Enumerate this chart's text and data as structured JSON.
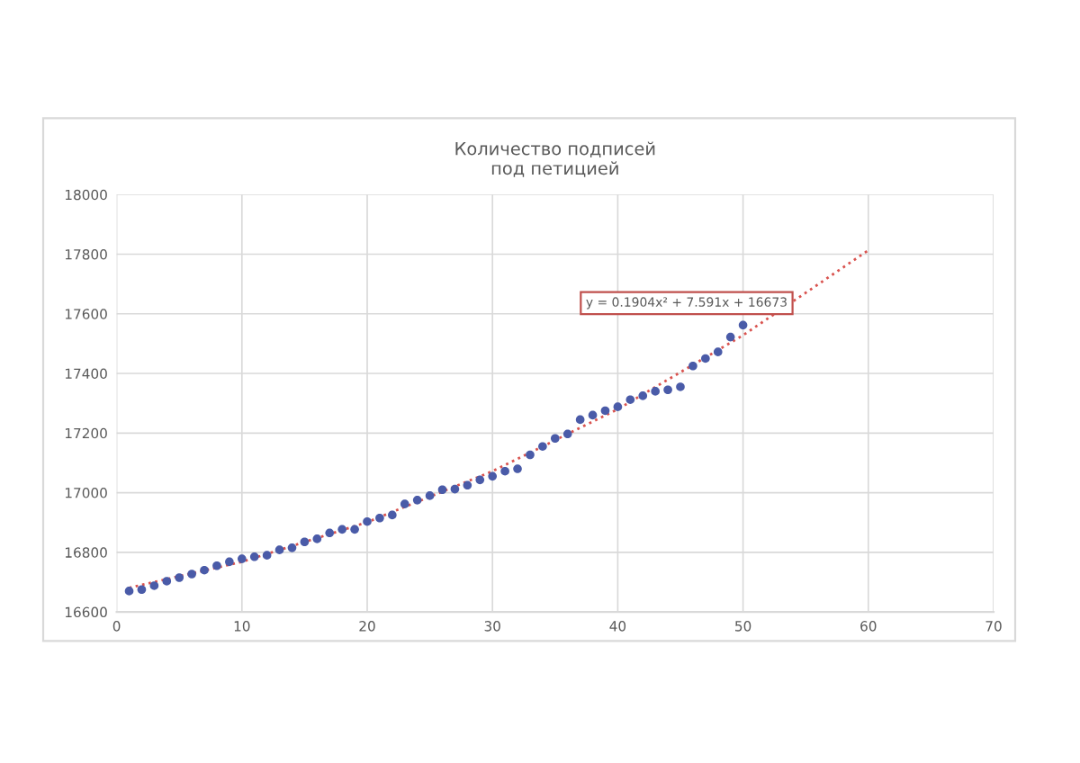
{
  "chart_data": {
    "type": "scatter",
    "title": "Количество подписей\nпод петицией",
    "x": [
      1,
      2,
      3,
      4,
      5,
      6,
      7,
      8,
      9,
      10,
      11,
      12,
      13,
      14,
      15,
      16,
      17,
      18,
      19,
      20,
      21,
      22,
      23,
      24,
      25,
      26,
      27,
      28,
      29,
      30,
      31,
      32,
      33,
      34,
      35,
      36,
      37,
      38,
      39,
      40,
      41,
      42,
      43,
      44,
      45,
      46,
      47,
      48,
      49,
      50
    ],
    "series": [
      {
        "color": "#4a5ba8",
        "marker": "circle",
        "values": [
          16670,
          16675,
          16688,
          16703,
          16715,
          16727,
          16740,
          16755,
          16768,
          16778,
          16785,
          16790,
          16808,
          16815,
          16835,
          16845,
          16865,
          16877,
          16877,
          16903,
          16915,
          16925,
          16962,
          16975,
          16990,
          17010,
          17012,
          17025,
          17043,
          17055,
          17072,
          17080,
          17127,
          17155,
          17182,
          17197,
          17245,
          17260,
          17275,
          17288,
          17312,
          17325,
          17340,
          17345,
          17355,
          17425,
          17450,
          17472,
          17522,
          17562
        ]
      },
      {
        "type": "line",
        "color": "#d9534f",
        "line_style": "dotted",
        "marker": "none",
        "x": [
          1,
          10,
          20,
          30,
          40,
          50,
          60
        ],
        "values": [
          16681,
          16768,
          16901,
          17072,
          17280,
          17528,
          17813
        ]
      }
    ],
    "annotations": [
      "y = 0.1904x² + 7.591x + 16673"
    ],
    "xlim": [
      0,
      70
    ],
    "xticks": [
      0,
      10,
      20,
      30,
      40,
      50,
      60,
      70
    ],
    "ylim": [
      16600,
      18000
    ],
    "yticks": [
      16600,
      16800,
      17000,
      17200,
      17400,
      17600,
      17800,
      18000
    ],
    "grid": true,
    "legend": false
  }
}
